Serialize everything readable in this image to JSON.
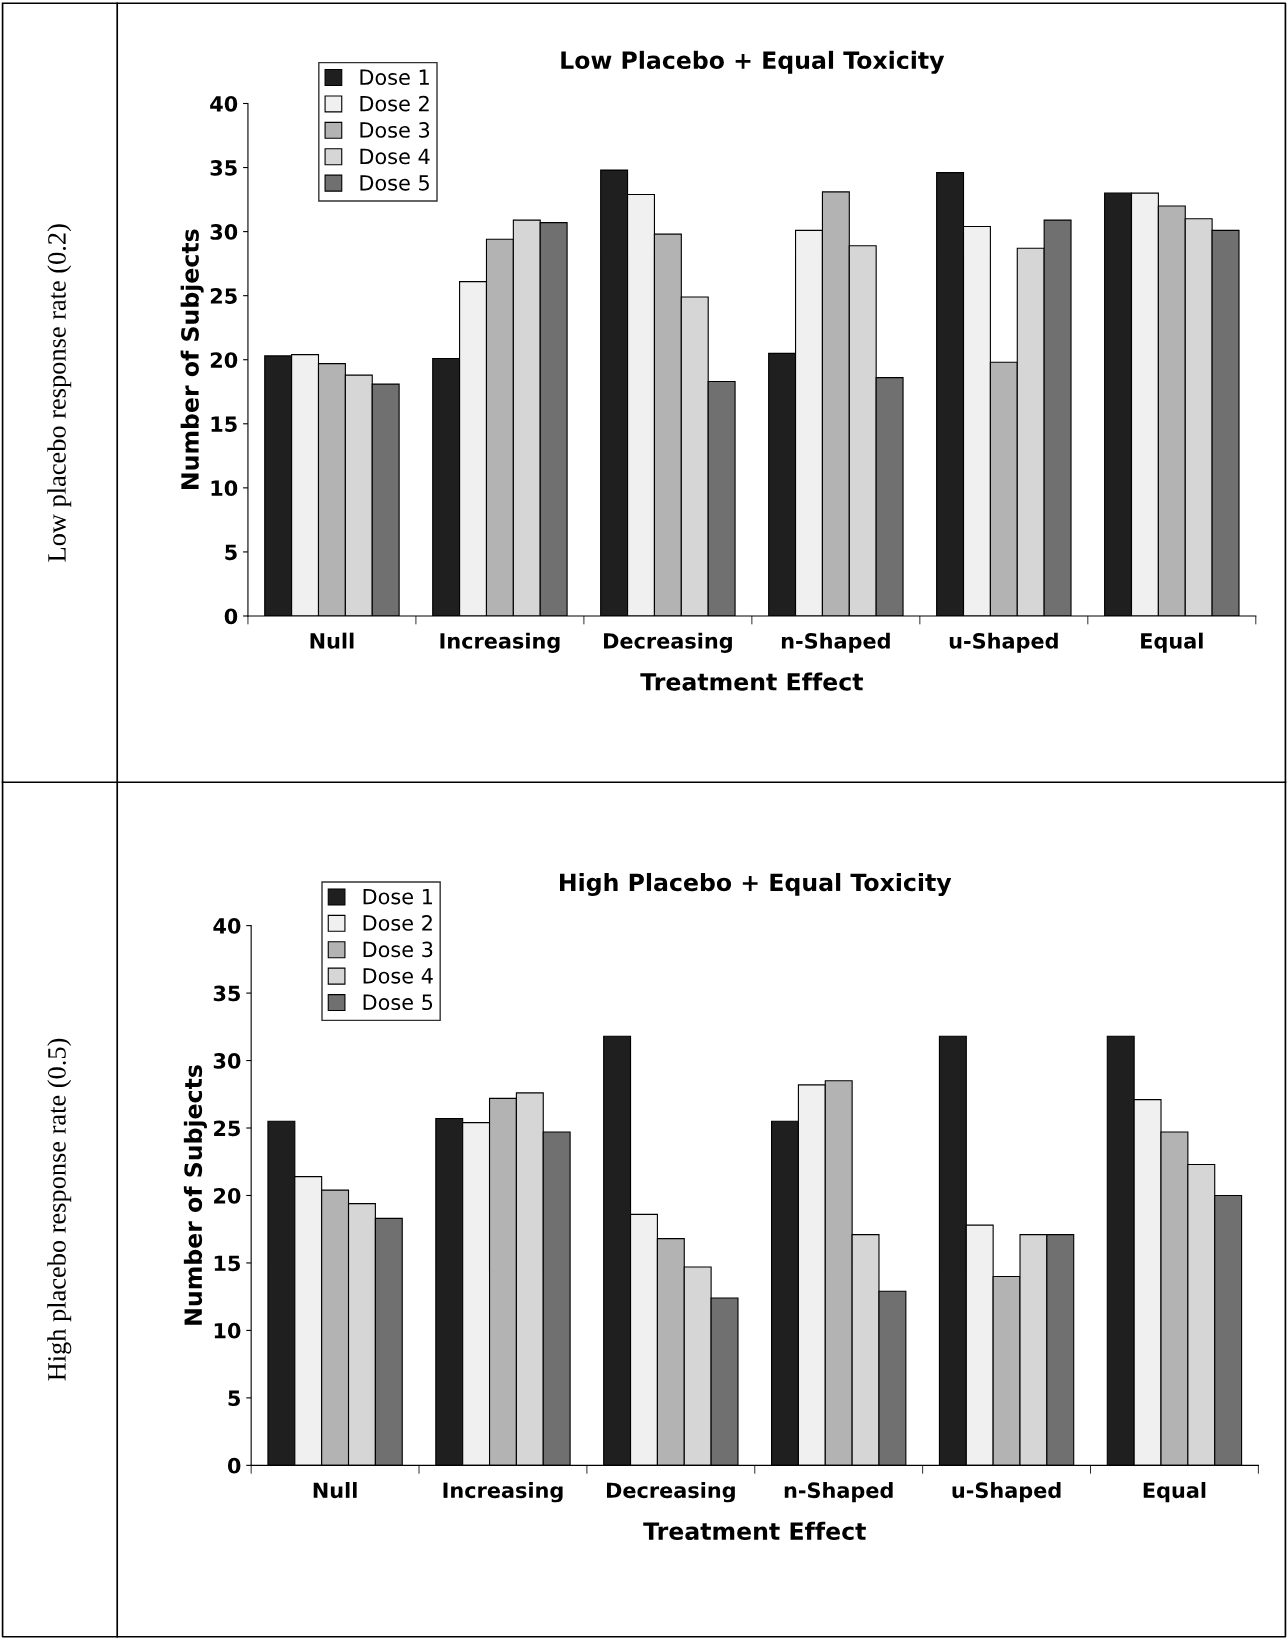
{
  "chart_data": [
    {
      "type": "bar",
      "title": "Low Placebo + Equal Toxicity",
      "xlabel": "Treatment Effect",
      "ylabel": "Number of Subjects",
      "annotations": [
        "Low placebo response rate (0.2)"
      ],
      "categories": [
        "Null",
        "Increasing",
        "Decreasing",
        "n-Shaped",
        "u-Shaped",
        "Equal"
      ],
      "series": [
        {
          "name": "Dose 1",
          "color": "#1f1f1f",
          "values": [
            20.3,
            20.1,
            34.8,
            20.5,
            34.6,
            33.0
          ]
        },
        {
          "name": "Dose 2",
          "color": "#f0f0f0",
          "values": [
            20.4,
            26.1,
            32.9,
            30.1,
            30.4,
            33.0
          ]
        },
        {
          "name": "Dose 3",
          "color": "#b3b3b3",
          "values": [
            19.7,
            29.4,
            29.8,
            33.1,
            19.8,
            32.0
          ]
        },
        {
          "name": "Dose 4",
          "color": "#d6d6d6",
          "values": [
            18.8,
            30.9,
            24.9,
            28.9,
            28.7,
            31.0
          ]
        },
        {
          "name": "Dose 5",
          "color": "#707070",
          "values": [
            18.1,
            30.7,
            18.3,
            18.6,
            30.9,
            30.1
          ]
        }
      ],
      "ylim": [
        0,
        40
      ],
      "yticks": [
        0,
        5,
        10,
        15,
        20,
        25,
        30,
        35,
        40
      ],
      "grid": false,
      "legend": "top left"
    },
    {
      "type": "bar",
      "title": "High Placebo + Equal Toxicity",
      "xlabel": "Treatment Effect",
      "ylabel": "Number of Subjects",
      "annotations": [
        "High placebo response rate (0.5)"
      ],
      "categories": [
        "Null",
        "Increasing",
        "Decreasing",
        "n-Shaped",
        "u-Shaped",
        "Equal"
      ],
      "series": [
        {
          "name": "Dose 1",
          "color": "#1f1f1f",
          "values": [
            25.5,
            25.7,
            31.8,
            25.5,
            31.8,
            31.8
          ]
        },
        {
          "name": "Dose 2",
          "color": "#f0f0f0",
          "values": [
            21.4,
            25.4,
            18.6,
            28.2,
            17.8,
            27.1
          ]
        },
        {
          "name": "Dose 3",
          "color": "#b3b3b3",
          "values": [
            20.4,
            27.2,
            16.8,
            28.5,
            14.0,
            24.7
          ]
        },
        {
          "name": "Dose 4",
          "color": "#d6d6d6",
          "values": [
            19.4,
            27.6,
            14.7,
            17.1,
            17.1,
            22.3
          ]
        },
        {
          "name": "Dose 5",
          "color": "#707070",
          "values": [
            18.3,
            24.7,
            12.4,
            12.9,
            17.1,
            20.0
          ]
        }
      ],
      "ylim": [
        0,
        40
      ],
      "yticks": [
        0,
        5,
        10,
        15,
        20,
        25,
        30,
        35,
        40
      ],
      "grid": false,
      "legend": "top left"
    }
  ]
}
